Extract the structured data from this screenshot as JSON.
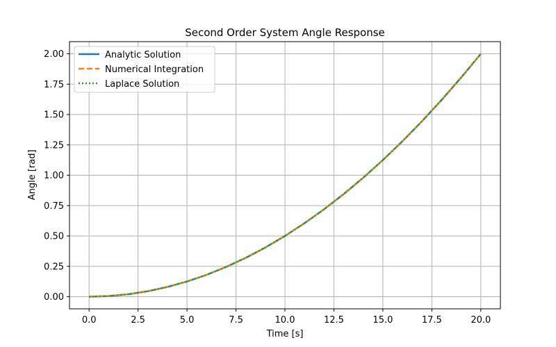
{
  "chart_data": {
    "type": "line",
    "title": "Second Order System Angle Response",
    "xlabel": "Time [s]",
    "ylabel": "Angle [rad]",
    "xlim": [
      -1.0,
      21.0
    ],
    "ylim": [
      -0.1,
      2.1
    ],
    "xticks": [
      0.0,
      2.5,
      5.0,
      7.5,
      10.0,
      12.5,
      15.0,
      17.5,
      20.0
    ],
    "yticks": [
      0.0,
      0.25,
      0.5,
      0.75,
      1.0,
      1.25,
      1.5,
      1.75,
      2.0
    ],
    "xtick_labels": [
      "0.0",
      "2.5",
      "5.0",
      "7.5",
      "10.0",
      "12.5",
      "15.0",
      "17.5",
      "20.0"
    ],
    "ytick_labels": [
      "0.00",
      "0.25",
      "0.50",
      "0.75",
      "1.00",
      "1.25",
      "1.50",
      "1.75",
      "2.00"
    ],
    "grid": true,
    "legend_position": "top-left",
    "x": [
      0.0,
      1.0,
      2.0,
      3.0,
      4.0,
      5.0,
      6.0,
      7.0,
      8.0,
      9.0,
      10.0,
      11.0,
      12.0,
      13.0,
      14.0,
      15.0,
      16.0,
      17.0,
      18.0,
      19.0,
      20.0
    ],
    "series": [
      {
        "name": "Analytic Solution",
        "color": "#1f77b4",
        "style": "solid",
        "values": [
          0.0,
          0.005,
          0.02,
          0.045,
          0.08,
          0.125,
          0.18,
          0.245,
          0.32,
          0.405,
          0.5,
          0.605,
          0.72,
          0.845,
          0.98,
          1.125,
          1.28,
          1.445,
          1.62,
          1.805,
          2.0
        ]
      },
      {
        "name": "Numerical Integration",
        "color": "#ff7f0e",
        "style": "dashed",
        "values": [
          0.0,
          0.005,
          0.02,
          0.045,
          0.08,
          0.125,
          0.18,
          0.245,
          0.32,
          0.405,
          0.5,
          0.605,
          0.72,
          0.845,
          0.98,
          1.125,
          1.28,
          1.445,
          1.62,
          1.805,
          2.0
        ]
      },
      {
        "name": "Laplace Solution",
        "color": "#2ca02c",
        "style": "dotted",
        "values": [
          0.0,
          0.005,
          0.02,
          0.045,
          0.08,
          0.125,
          0.18,
          0.245,
          0.32,
          0.405,
          0.5,
          0.605,
          0.72,
          0.845,
          0.98,
          1.125,
          1.28,
          1.445,
          1.62,
          1.805,
          2.0
        ]
      }
    ]
  }
}
